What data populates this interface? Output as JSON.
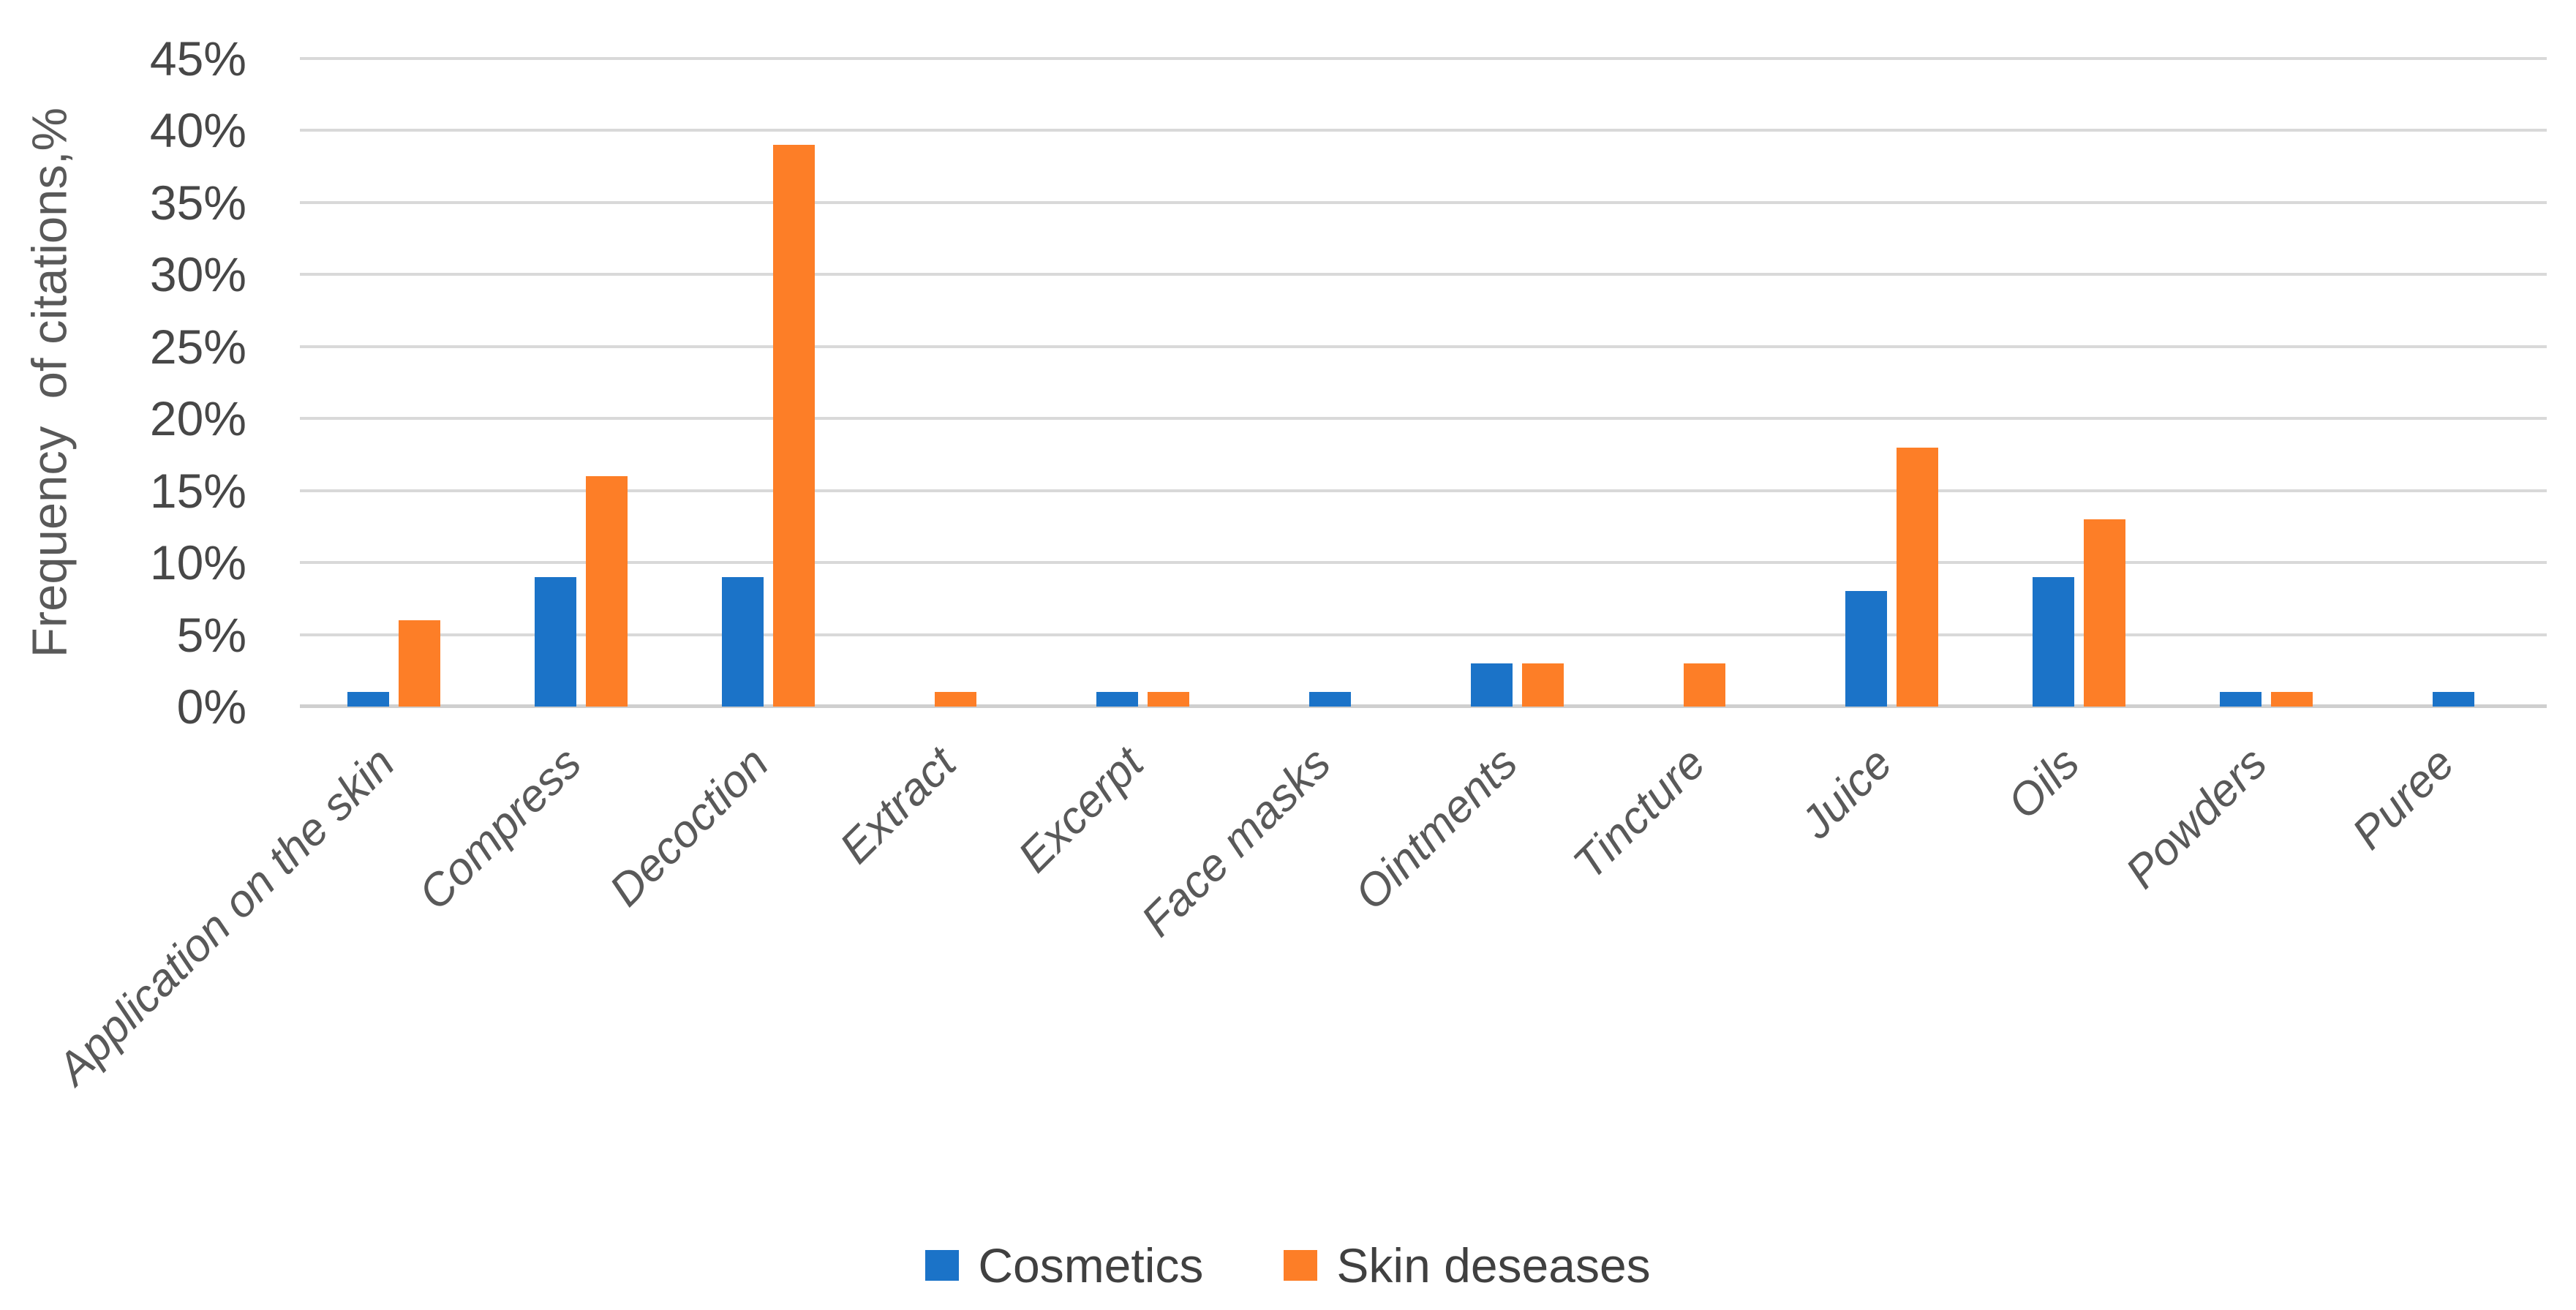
{
  "chart_data": {
    "type": "bar",
    "title": "",
    "categories": [
      "Application on the skin",
      "Compress",
      "Decoction",
      "Extract",
      "Excerpt",
      "Face masks",
      "Ointments",
      "Tincture",
      "Juice",
      "Oils",
      "Powders",
      "Puree"
    ],
    "series": [
      {
        "name": "Cosmetics",
        "color": "#1B73C8",
        "values": [
          1,
          9,
          9,
          0,
          1,
          1,
          3,
          0,
          8,
          9,
          1,
          1
        ]
      },
      {
        "name": "Skin deseases",
        "color": "#FD7E27",
        "values": [
          6,
          16,
          39,
          1,
          1,
          0,
          3,
          3,
          18,
          13,
          1,
          0
        ]
      }
    ],
    "ylabel": "Frequency  of citations,%",
    "xlabel": "",
    "ylim": [
      0,
      45
    ],
    "y_tick_step": 5,
    "y_tick_labels": [
      "0%",
      "5%",
      "10%",
      "15%",
      "20%",
      "25%",
      "30%",
      "35%",
      "40%",
      "45%"
    ],
    "grid": true,
    "legend_position": "bottom",
    "style": {
      "gridline_color": "#D9D9D9",
      "axis_line_color": "#CFCFCF",
      "tick_label_color": "#474747",
      "category_label_color": "#595959",
      "axis_title_color": "#595959",
      "legend_text_color": "#404040",
      "background": "#FFFFFF"
    }
  }
}
